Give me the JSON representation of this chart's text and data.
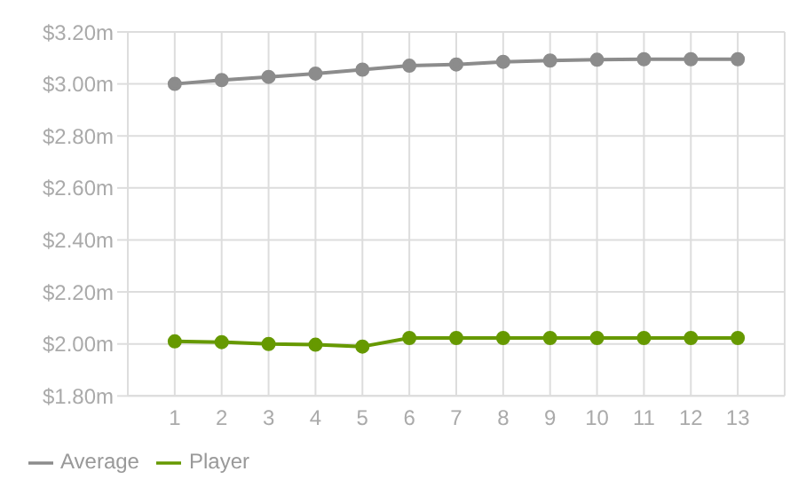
{
  "chart_data": {
    "type": "line",
    "x": [
      1,
      2,
      3,
      4,
      5,
      6,
      7,
      8,
      9,
      10,
      11,
      12,
      13
    ],
    "series": [
      {
        "name": "Player",
        "color": "#669900",
        "values": [
          2.01,
          2.007,
          2.0,
          1.997,
          1.99,
          2.023,
          2.023,
          2.023,
          2.023,
          2.023,
          2.023,
          2.023,
          2.023
        ]
      },
      {
        "name": "Average",
        "color": "#8c8c8c",
        "values": [
          3.0,
          3.015,
          3.027,
          3.04,
          3.055,
          3.07,
          3.075,
          3.085,
          3.09,
          3.093,
          3.095,
          3.095,
          3.095
        ]
      }
    ],
    "xlim": [
      0,
      14
    ],
    "xticks": [
      {
        "value": 0,
        "label": null
      },
      1,
      2,
      3,
      4,
      5,
      6,
      7,
      8,
      9,
      10,
      11,
      12,
      13,
      {
        "value": 14,
        "label": null
      }
    ],
    "ylim": [
      1.8,
      3.2
    ],
    "yticks": [
      {
        "value": 1.8,
        "label": "$1.80m"
      },
      {
        "value": 2.0,
        "label": "$2.00m"
      },
      {
        "value": 2.2,
        "label": "$2.20m"
      },
      {
        "value": 2.4,
        "label": "$2.40m"
      },
      {
        "value": 2.6,
        "label": "$2.60m"
      },
      {
        "value": 2.8,
        "label": "$2.80m"
      },
      {
        "value": 3.0,
        "label": "$3.00m"
      },
      {
        "value": 3.2,
        "label": "$3.20m"
      }
    ],
    "grid": true,
    "legend": "bottom left",
    "marker": "circle",
    "line_style": "solid"
  }
}
